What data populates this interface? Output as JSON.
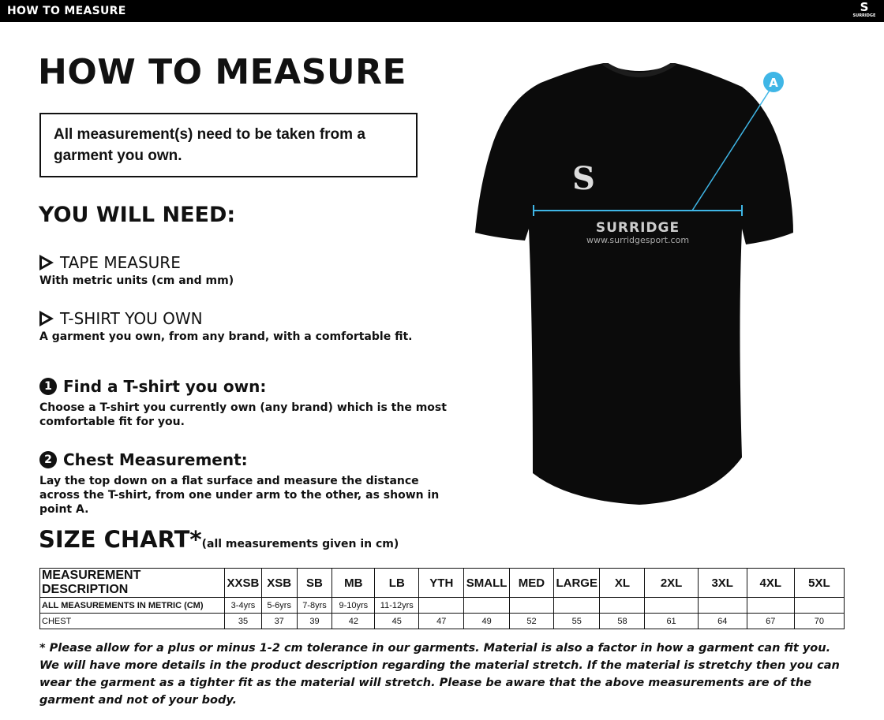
{
  "topbar": {
    "title": "HOW TO MEASURE",
    "logo_text": "SURRIDGE"
  },
  "title": "HOW TO MEASURE",
  "notice": "All measurement(s) need to be taken from a garment you own.",
  "need_heading": "YOU WILL NEED:",
  "needs": [
    {
      "title": "TAPE MEASURE",
      "desc": "With metric units (cm and mm)",
      "icon": "triangle-arrow-icon"
    },
    {
      "title": "T-SHIRT YOU OWN",
      "desc": "A garment you own, from any brand, with a comfortable fit.",
      "icon": "triangle-arrow-icon"
    }
  ],
  "steps": [
    {
      "num": "1",
      "title": "Find a T-shirt you own:",
      "desc": "Choose a T-shirt you currently own (any brand) which is the most comfortable fit for you."
    },
    {
      "num": "2",
      "title": "Chest Measurement:",
      "desc": "Lay the top down on a flat surface and measure the distance across the T-shirt, from one under arm to the other, as shown in point A."
    }
  ],
  "shirt": {
    "marker": "A",
    "brand": "SURRIDGE",
    "url": "www.surridgesport.com",
    "marker_color": "#3fb6e6"
  },
  "size_chart": {
    "heading": "SIZE CHART*",
    "subheading": "(all measurements given in cm)",
    "headers": [
      "MEASUREMENT DESCRIPTION",
      "XXSB",
      "XSB",
      "SB",
      "MB",
      "LB",
      "YTH",
      "SMALL",
      "MED",
      "LARGE",
      "XL",
      "2XL",
      "3XL",
      "4XL",
      "5XL"
    ],
    "rows": [
      [
        "ALL MEASUREMENTS IN METRIC (CM)",
        "3-4yrs",
        "5-6yrs",
        "7-8yrs",
        "9-10yrs",
        "11-12yrs",
        "",
        "",
        "",
        "",
        "",
        "",
        "",
        "",
        ""
      ],
      [
        "CHEST",
        "35",
        "37",
        "39",
        "42",
        "45",
        "47",
        "49",
        "52",
        "55",
        "58",
        "61",
        "64",
        "67",
        "70"
      ]
    ]
  },
  "footnote": "* Please allow for a plus or minus 1-2 cm tolerance in our garments. Material is also a factor in how a garment can fit you. We will have more details in the product description regarding the material stretch.  If the material is stretchy then you can wear the garment as a tighter fit as the material will stretch.  Please be aware that the above measurements are of the garment and not of your body."
}
